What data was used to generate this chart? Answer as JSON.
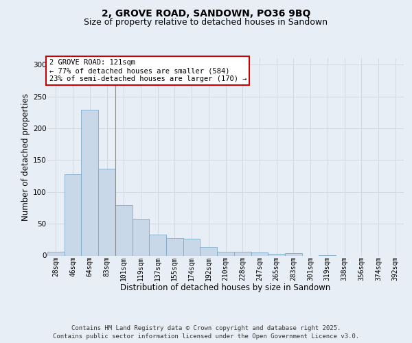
{
  "title_line1": "2, GROVE ROAD, SANDOWN, PO36 9BQ",
  "title_line2": "Size of property relative to detached houses in Sandown",
  "xlabel": "Distribution of detached houses by size in Sandown",
  "ylabel": "Number of detached properties",
  "categories": [
    "28sqm",
    "46sqm",
    "64sqm",
    "83sqm",
    "101sqm",
    "119sqm",
    "137sqm",
    "155sqm",
    "174sqm",
    "192sqm",
    "210sqm",
    "228sqm",
    "247sqm",
    "265sqm",
    "283sqm",
    "301sqm",
    "319sqm",
    "338sqm",
    "356sqm",
    "374sqm",
    "392sqm"
  ],
  "values": [
    6,
    128,
    229,
    136,
    79,
    58,
    33,
    27,
    26,
    13,
    6,
    6,
    5,
    3,
    4,
    0,
    1,
    0,
    0,
    0,
    0
  ],
  "bar_color": "#c8d8e8",
  "bar_edge_color": "#7baac8",
  "vline_position": 3.5,
  "annotation_text": "2 GROVE ROAD: 121sqm\n← 77% of detached houses are smaller (584)\n23% of semi-detached houses are larger (170) →",
  "annotation_box_facecolor": "#ffffff",
  "annotation_box_edgecolor": "#cc0000",
  "ylim": [
    0,
    310
  ],
  "yticks": [
    0,
    50,
    100,
    150,
    200,
    250,
    300
  ],
  "grid_color": "#d0d8e4",
  "bg_color": "#e8eef5",
  "footer_line1": "Contains HM Land Registry data © Crown copyright and database right 2025.",
  "footer_line2": "Contains public sector information licensed under the Open Government Licence v3.0.",
  "title1_fontsize": 10,
  "title2_fontsize": 9,
  "xlabel_fontsize": 8.5,
  "ylabel_fontsize": 8.5,
  "tick_fontsize": 7,
  "annotation_fontsize": 7.5,
  "footer_fontsize": 6.5
}
